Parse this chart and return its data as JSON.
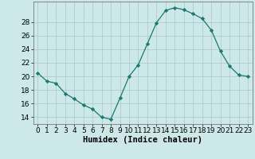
{
  "x": [
    0,
    1,
    2,
    3,
    4,
    5,
    6,
    7,
    8,
    9,
    10,
    11,
    12,
    13,
    14,
    15,
    16,
    17,
    18,
    19,
    20,
    21,
    22,
    23
  ],
  "y": [
    20.5,
    19.3,
    19.0,
    17.5,
    16.7,
    15.8,
    15.2,
    14.0,
    13.7,
    16.8,
    20.0,
    21.7,
    24.8,
    27.9,
    29.7,
    30.1,
    29.8,
    29.2,
    28.5,
    26.8,
    23.7,
    21.5,
    20.2,
    20.0
  ],
  "line_color": "#1a7a6e",
  "marker": "D",
  "marker_size": 2.2,
  "bg_color": "#cce8e8",
  "grid_color": "#b0cccc",
  "xlabel": "Humidex (Indice chaleur)",
  "ylim": [
    13,
    31
  ],
  "xlim": [
    -0.5,
    23.5
  ],
  "yticks": [
    14,
    16,
    18,
    20,
    22,
    24,
    26,
    28
  ],
  "xticks": [
    0,
    1,
    2,
    3,
    4,
    5,
    6,
    7,
    8,
    9,
    10,
    11,
    12,
    13,
    14,
    15,
    16,
    17,
    18,
    19,
    20,
    21,
    22,
    23
  ],
  "xlabel_fontsize": 7.5,
  "tick_fontsize": 6.5
}
